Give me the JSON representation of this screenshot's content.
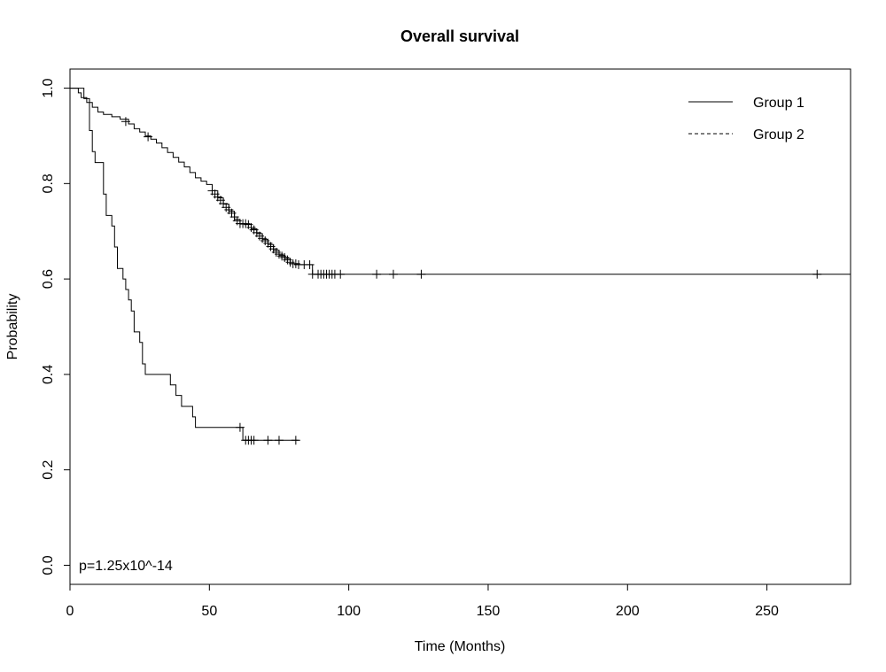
{
  "chart_data": {
    "type": "line",
    "subtype": "kaplan-meier step",
    "title": "Overall survival",
    "xlabel": "Time (Months)",
    "ylabel": "Probability",
    "xlim": [
      0,
      280
    ],
    "ylim": [
      -0.04,
      1.04
    ],
    "x_ticks": [
      0,
      50,
      100,
      150,
      200,
      250
    ],
    "y_ticks": [
      0.0,
      0.2,
      0.4,
      0.6,
      0.8,
      1.0
    ],
    "x_tick_labels": [
      "0",
      "50",
      "100",
      "150",
      "200",
      "250"
    ],
    "y_tick_labels": [
      "0.0",
      "0.2",
      "0.4",
      "0.6",
      "0.8",
      "1.0"
    ],
    "grid": false,
    "legend_position": "top-right",
    "annotation": "p=1.25x10^-14",
    "series": [
      {
        "name": "Group 1",
        "line_style": "solid",
        "color": "#000000",
        "steps": [
          [
            0,
            1.0
          ],
          [
            3,
            0.99
          ],
          [
            4,
            0.98
          ],
          [
            6,
            0.97
          ],
          [
            8,
            0.96
          ],
          [
            10,
            0.95
          ],
          [
            12,
            0.945
          ],
          [
            15,
            0.94
          ],
          [
            18,
            0.935
          ],
          [
            21,
            0.925
          ],
          [
            23,
            0.915
          ],
          [
            25,
            0.908
          ],
          [
            27,
            0.9
          ],
          [
            29,
            0.893
          ],
          [
            31,
            0.885
          ],
          [
            33,
            0.875
          ],
          [
            35,
            0.865
          ],
          [
            37,
            0.855
          ],
          [
            39,
            0.845
          ],
          [
            41,
            0.835
          ],
          [
            43,
            0.823
          ],
          [
            45,
            0.812
          ],
          [
            47,
            0.805
          ],
          [
            49,
            0.798
          ],
          [
            51,
            0.785
          ],
          [
            53,
            0.77
          ],
          [
            55,
            0.757
          ],
          [
            57,
            0.742
          ],
          [
            59,
            0.725
          ],
          [
            61,
            0.715
          ],
          [
            63,
            0.715
          ],
          [
            65,
            0.705
          ],
          [
            67,
            0.695
          ],
          [
            69,
            0.683
          ],
          [
            71,
            0.672
          ],
          [
            73,
            0.66
          ],
          [
            75,
            0.65
          ],
          [
            77,
            0.643
          ],
          [
            79,
            0.632
          ],
          [
            82,
            0.63
          ],
          [
            87,
            0.61
          ],
          [
            280,
            0.61
          ]
        ],
        "censor_marks": [
          [
            20,
            0.93
          ],
          [
            28,
            0.898
          ],
          [
            51,
            0.785
          ],
          [
            52,
            0.778
          ],
          [
            53,
            0.772
          ],
          [
            54,
            0.765
          ],
          [
            55,
            0.758
          ],
          [
            56,
            0.75
          ],
          [
            57,
            0.745
          ],
          [
            58,
            0.738
          ],
          [
            59,
            0.73
          ],
          [
            60,
            0.722
          ],
          [
            61,
            0.716
          ],
          [
            62,
            0.716
          ],
          [
            63,
            0.716
          ],
          [
            64,
            0.714
          ],
          [
            65,
            0.708
          ],
          [
            66,
            0.703
          ],
          [
            67,
            0.697
          ],
          [
            68,
            0.69
          ],
          [
            69,
            0.685
          ],
          [
            70,
            0.68
          ],
          [
            71,
            0.675
          ],
          [
            72,
            0.668
          ],
          [
            73,
            0.663
          ],
          [
            74,
            0.656
          ],
          [
            75,
            0.652
          ],
          [
            76,
            0.648
          ],
          [
            77,
            0.645
          ],
          [
            78,
            0.64
          ],
          [
            79,
            0.635
          ],
          [
            80,
            0.632
          ],
          [
            81,
            0.632
          ],
          [
            82,
            0.63
          ],
          [
            84,
            0.63
          ],
          [
            86,
            0.63
          ],
          [
            87,
            0.61
          ],
          [
            89,
            0.61
          ],
          [
            90,
            0.61
          ],
          [
            91,
            0.61
          ],
          [
            92,
            0.61
          ],
          [
            93,
            0.61
          ],
          [
            94,
            0.61
          ],
          [
            95,
            0.61
          ],
          [
            97,
            0.61
          ],
          [
            110,
            0.61
          ],
          [
            116,
            0.61
          ],
          [
            126,
            0.61
          ],
          [
            268,
            0.61
          ]
        ]
      },
      {
        "name": "Group 2",
        "line_style": "dashed",
        "color": "#000000",
        "steps": [
          [
            0,
            1.0
          ],
          [
            5,
            0.978
          ],
          [
            7,
            0.911
          ],
          [
            8,
            0.867
          ],
          [
            9,
            0.844
          ],
          [
            12,
            0.778
          ],
          [
            13,
            0.733
          ],
          [
            15,
            0.711
          ],
          [
            16,
            0.667
          ],
          [
            17,
            0.622
          ],
          [
            19,
            0.6
          ],
          [
            20,
            0.578
          ],
          [
            21,
            0.556
          ],
          [
            22,
            0.533
          ],
          [
            23,
            0.489
          ],
          [
            25,
            0.467
          ],
          [
            26,
            0.422
          ],
          [
            27,
            0.4
          ],
          [
            36,
            0.378
          ],
          [
            38,
            0.356
          ],
          [
            40,
            0.333
          ],
          [
            44,
            0.311
          ],
          [
            45,
            0.289
          ],
          [
            62,
            0.262
          ],
          [
            82,
            0.262
          ]
        ],
        "censor_marks": [
          [
            61,
            0.289
          ],
          [
            63,
            0.262
          ],
          [
            64,
            0.262
          ],
          [
            65,
            0.262
          ],
          [
            66,
            0.262
          ],
          [
            71,
            0.262
          ],
          [
            75,
            0.262
          ],
          [
            81,
            0.262
          ]
        ]
      }
    ]
  }
}
